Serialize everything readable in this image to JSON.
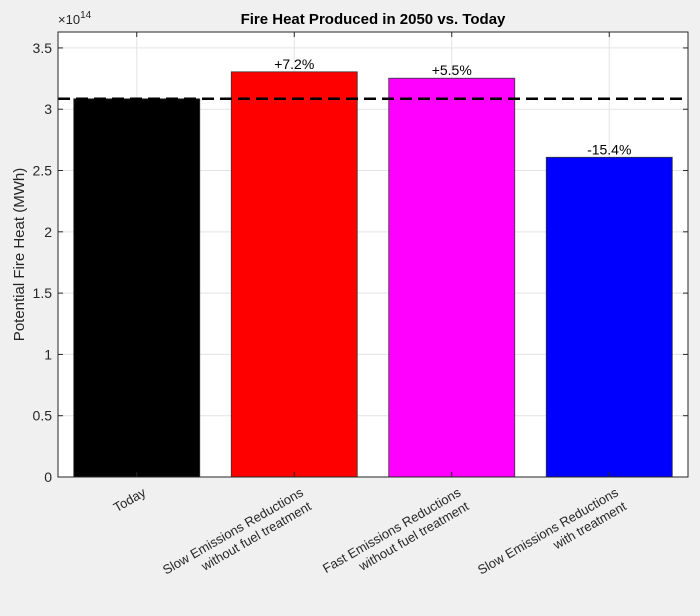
{
  "chart_data": {
    "type": "bar",
    "title": "Fire Heat Produced in 2050 vs. Today",
    "xlabel": "",
    "ylabel": "Potential Fire Heat (MWh)",
    "y_exponent_label": "×10",
    "y_exponent": "14",
    "categories": [
      [
        "Today"
      ],
      [
        "Slow Emissions Reductions",
        "without fuel treatment"
      ],
      [
        "Fast Emissions Reductions",
        "without fuel treatment"
      ],
      [
        "Slow Emissions Reductions",
        "with treatment"
      ]
    ],
    "values": [
      3.085,
      3.305,
      3.253,
      2.608
    ],
    "value_scale": 100000000000000.0,
    "colors": [
      "#000000",
      "#ff0000",
      "#ff00ff",
      "#0000ff"
    ],
    "data_labels": [
      "",
      "+7.2%",
      "+5.5%",
      "-15.4%"
    ],
    "reference_line": {
      "value": 3.085,
      "style": "dashed",
      "color": "#000000"
    },
    "ylim": [
      0,
      3.63
    ],
    "yticks": [
      0,
      0.5,
      1,
      1.5,
      2,
      2.5,
      3,
      3.5
    ],
    "ytick_labels": [
      "0",
      "0.5",
      "1",
      "1.5",
      "2",
      "2.5",
      "3",
      "3.5"
    ],
    "grid": true
  }
}
